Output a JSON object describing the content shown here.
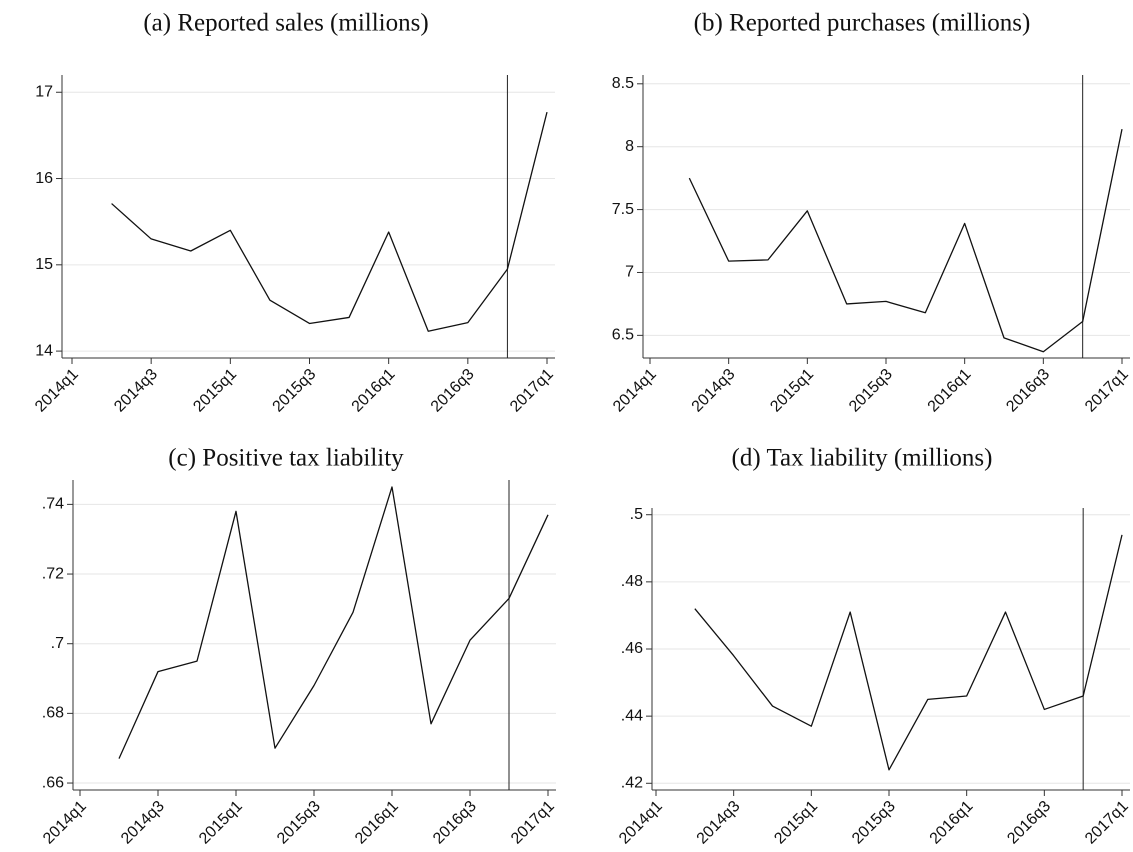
{
  "chart_data": [
    {
      "type": "line",
      "title": "(a) Reported sales (millions)",
      "categories": [
        "2014q1",
        null,
        "2014q3",
        null,
        "2015q1",
        null,
        "2015q3",
        null,
        "2016q1",
        null,
        "2016q3",
        null,
        "2017q1"
      ],
      "values": [
        null,
        15.71,
        15.3,
        15.16,
        15.4,
        14.59,
        14.32,
        14.39,
        15.38,
        14.23,
        14.33,
        14.95,
        16.77
      ],
      "color": "#111111",
      "ylim": [
        13.92,
        17.2
      ],
      "yticks": [
        14,
        15,
        16,
        17
      ],
      "grid": true,
      "vline_index": 11
    },
    {
      "type": "line",
      "title": "(b) Reported purchases (millions)",
      "categories": [
        "2014q1",
        null,
        "2014q3",
        null,
        "2015q1",
        null,
        "2015q3",
        null,
        "2016q1",
        null,
        "2016q3",
        null,
        "2017q1"
      ],
      "values": [
        null,
        7.75,
        7.09,
        7.1,
        7.49,
        6.75,
        6.77,
        6.68,
        7.39,
        6.48,
        6.37,
        6.61,
        8.14
      ],
      "color": "#111111",
      "ylim": [
        6.32,
        8.57
      ],
      "yticks": [
        6.5,
        7,
        7.5,
        8,
        8.5
      ],
      "grid": true,
      "vline_index": 11
    },
    {
      "type": "line",
      "title": "(c) Positive tax liability",
      "categories": [
        "2014q1",
        null,
        "2014q3",
        null,
        "2015q1",
        null,
        "2015q3",
        null,
        "2016q1",
        null,
        "2016q3",
        null,
        "2017q1"
      ],
      "values": [
        null,
        0.667,
        0.692,
        0.695,
        0.738,
        0.67,
        0.688,
        0.709,
        0.745,
        0.677,
        0.701,
        0.713,
        0.737
      ],
      "color": "#111111",
      "ylim": [
        0.658,
        0.747
      ],
      "yticks": [
        {
          "value": 0.66,
          "label": ".66"
        },
        {
          "value": 0.68,
          "label": ".68"
        },
        {
          "value": 0.7,
          "label": ".7"
        },
        {
          "value": 0.72,
          "label": ".72"
        },
        {
          "value": 0.74,
          "label": ".74"
        }
      ],
      "grid": true,
      "vline_index": 11
    },
    {
      "type": "line",
      "title": "(d) Tax liability (millions)",
      "categories": [
        "2014q1",
        null,
        "2014q3",
        null,
        "2015q1",
        null,
        "2015q3",
        null,
        "2016q1",
        null,
        "2016q3",
        null,
        "2017q1"
      ],
      "values": [
        null,
        0.472,
        0.458,
        0.443,
        0.437,
        0.471,
        0.424,
        0.445,
        0.446,
        0.471,
        0.442,
        0.446,
        0.494
      ],
      "color": "#111111",
      "ylim": [
        0.418,
        0.502
      ],
      "yticks": [
        {
          "value": 0.42,
          "label": ".42"
        },
        {
          "value": 0.44,
          "label": ".44"
        },
        {
          "value": 0.46,
          "label": ".46"
        },
        {
          "value": 0.48,
          "label": ".48"
        },
        {
          "value": 0.5,
          "label": ".5"
        }
      ],
      "grid": true,
      "vline_index": 11
    }
  ]
}
